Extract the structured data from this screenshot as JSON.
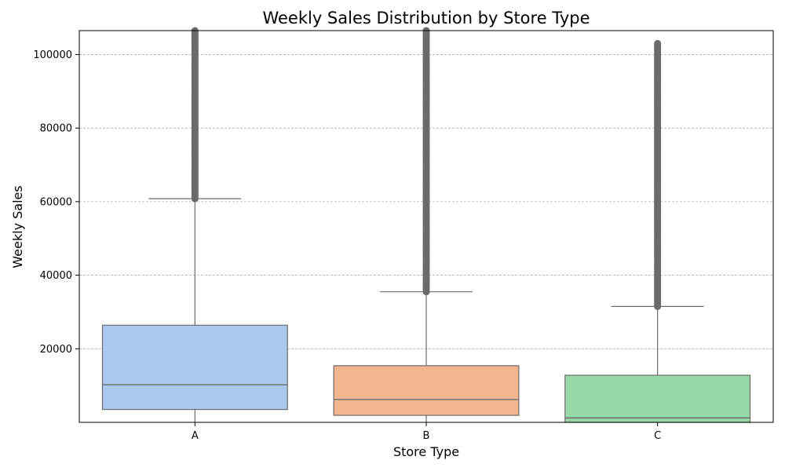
{
  "chart_data": {
    "type": "box",
    "title": "Weekly Sales Distribution by Store Type",
    "xlabel": "Store Type",
    "ylabel": "Weekly Sales",
    "categories": [
      "A",
      "B",
      "C"
    ],
    "ylim": [
      0,
      106500
    ],
    "yticks": [
      20000,
      40000,
      60000,
      80000,
      100000
    ],
    "grid": "y-dashed",
    "boxes": [
      {
        "category": "A",
        "q1": 3500,
        "median": 10200,
        "q3": 26400,
        "whisker_low": 0,
        "whisker_high": 60800,
        "outliers_from": 60800,
        "outliers_to": 106500,
        "color": "#abc9ee"
      },
      {
        "category": "B",
        "q1": 1900,
        "median": 6200,
        "q3": 15400,
        "whisker_low": 0,
        "whisker_high": 35500,
        "outliers_from": 35500,
        "outliers_to": 106500,
        "color": "#f1b68e"
      },
      {
        "category": "C",
        "q1": 0,
        "median": 1200,
        "q3": 12800,
        "whisker_low": 0,
        "whisker_high": 31500,
        "outliers_from": 31500,
        "outliers_to": 103000,
        "color": "#96d9a6"
      }
    ],
    "outlier_color": "#6b6b6b",
    "edge_color": "#6b6b6b"
  }
}
